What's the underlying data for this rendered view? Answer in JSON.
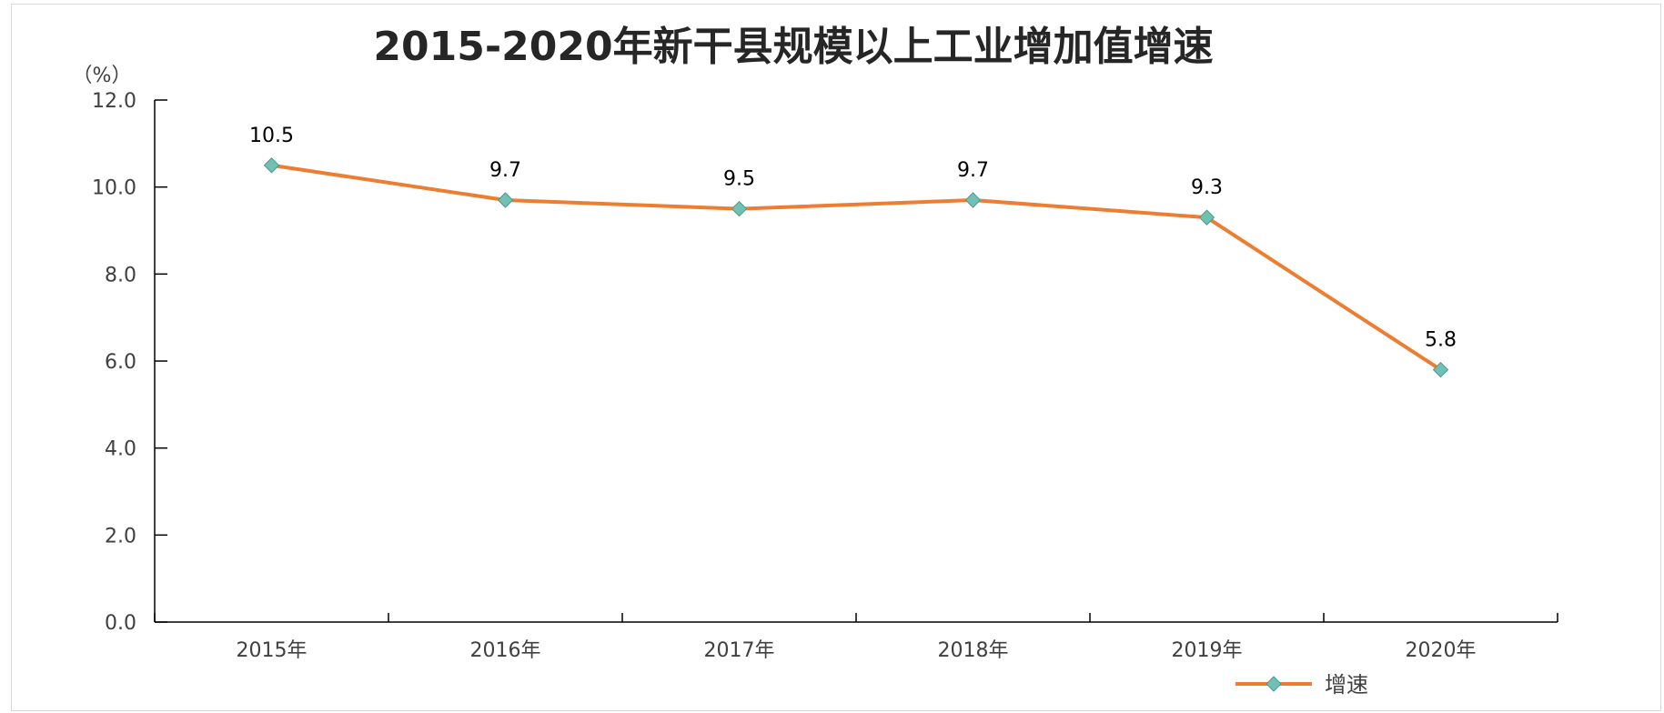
{
  "chart_data": {
    "type": "line",
    "title": "2015-2020年新干县规模以上工业增加值增速",
    "y_unit": "（%）",
    "categories": [
      "2015年",
      "2016年",
      "2017年",
      "2018年",
      "2019年",
      "2020年"
    ],
    "series": [
      {
        "name": "增速",
        "values": [
          10.5,
          9.7,
          9.5,
          9.7,
          9.3,
          5.8
        ],
        "color": "#ED7D31",
        "marker_color": "#70C1B3"
      }
    ],
    "data_labels": [
      "10.5",
      "9.7",
      "9.5",
      "9.7",
      "9.3",
      "5.8"
    ],
    "yticks": [
      "0.0",
      "2.0",
      "4.0",
      "6.0",
      "8.0",
      "10.0",
      "12.0"
    ],
    "ylim": [
      0,
      12
    ],
    "grid": false,
    "legend_position": "bottom-right"
  }
}
